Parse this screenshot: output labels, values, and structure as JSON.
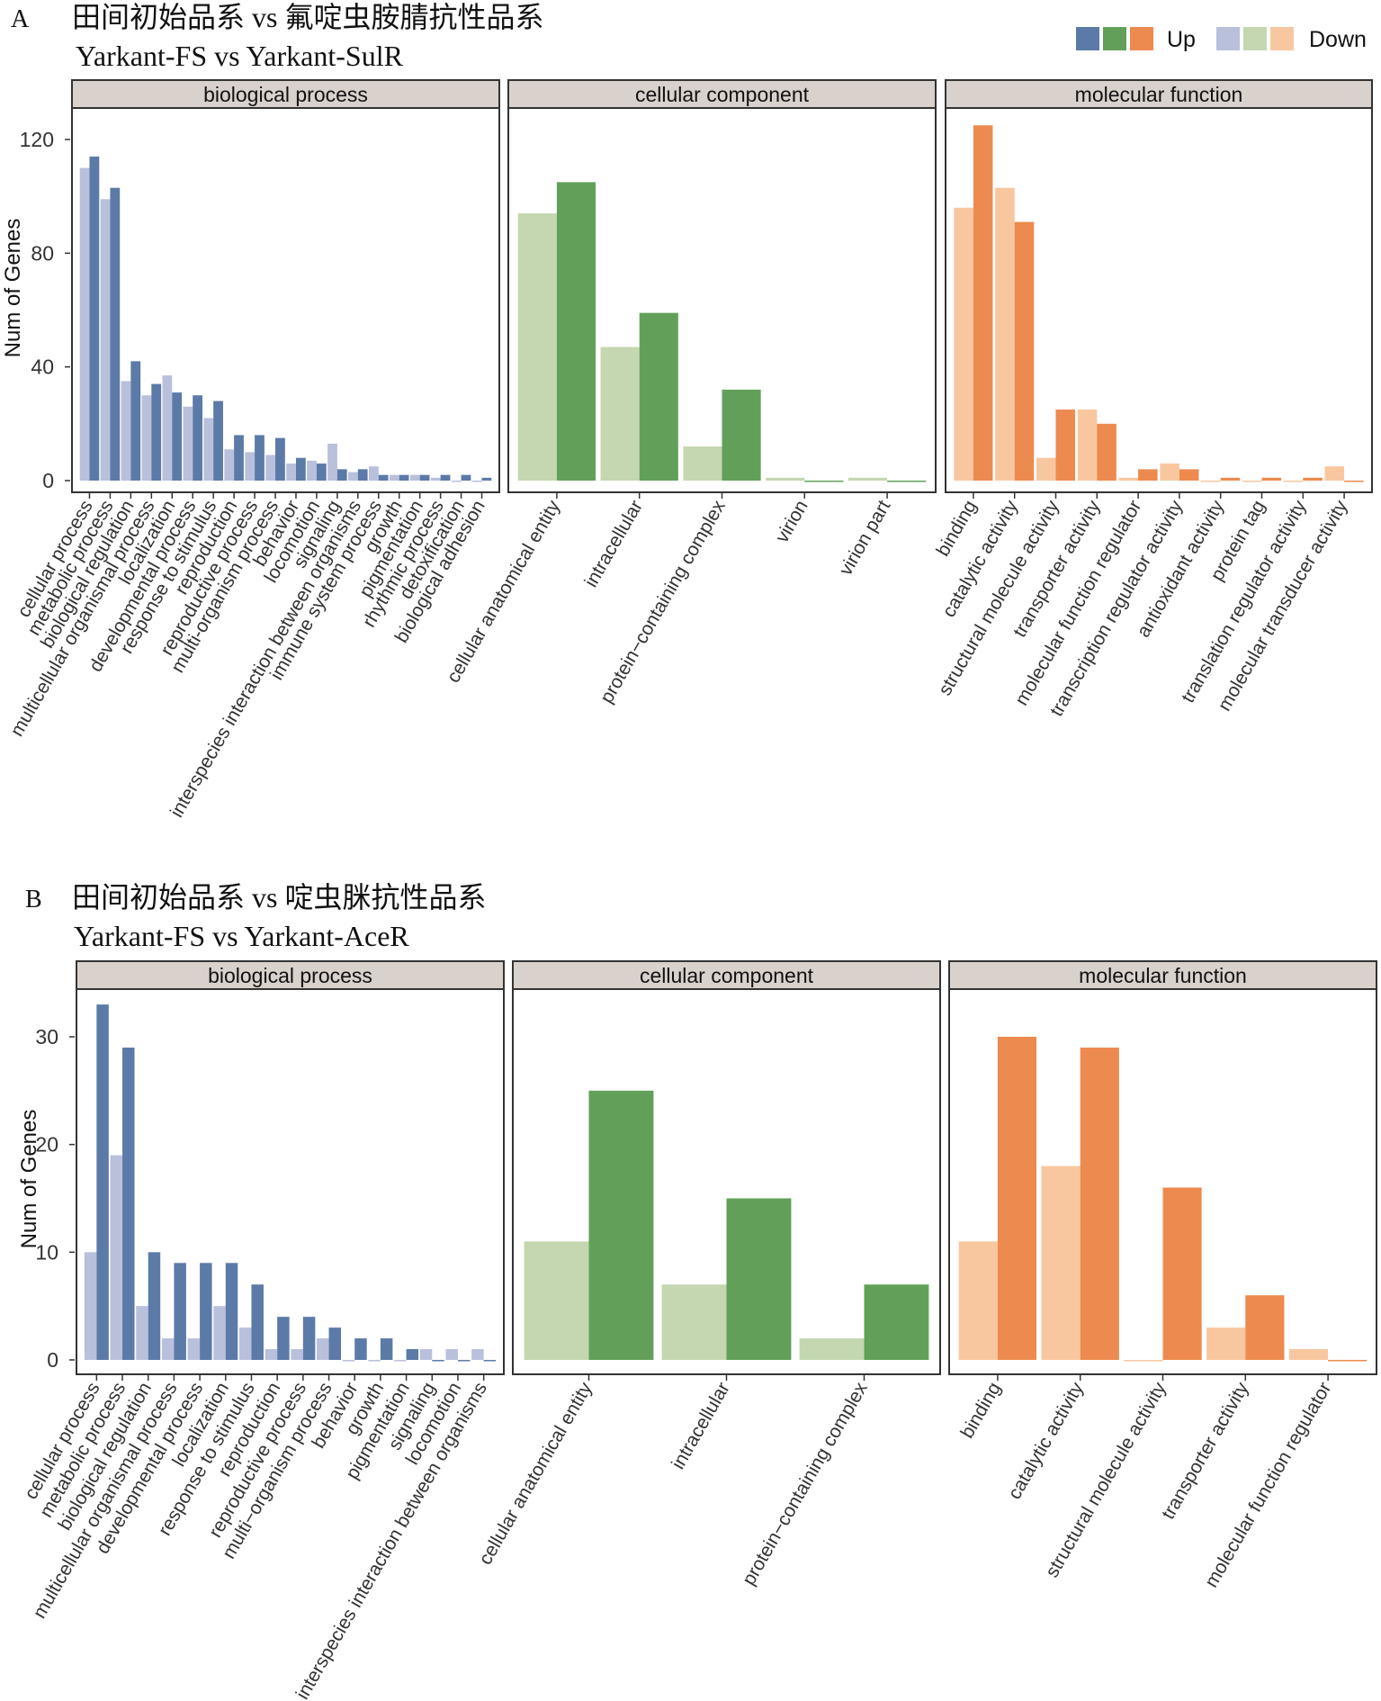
{
  "legend": {
    "up_label": "Up",
    "down_label": "Down",
    "up_colors": [
      "#5c7aa8",
      "#62a05a",
      "#ed8a4f"
    ],
    "down_colors": [
      "#b9c0dc",
      "#c4d7b0",
      "#f8c7a0"
    ]
  },
  "chart_data": [
    {
      "type": "bar",
      "panel_letter": "A",
      "title": "田间初始品系 vs 氟啶虫胺腈抗性品系",
      "subtitle": "Yarkant-FS vs Yarkant-SulR",
      "ylabel": "Num of Genes",
      "ylim": [
        0,
        130
      ],
      "yticks": [
        0,
        40,
        80,
        120
      ],
      "facets": [
        {
          "name": "biological process",
          "color_up": "#5c7aa8",
          "color_down": "#b9c0dc",
          "categories": [
            "cellular process",
            "metabolic process",
            "biological regulation",
            "multicellular organismal process",
            "localization",
            "developmental process",
            "response to stimulus",
            "reproduction",
            "reproductive process",
            "multi-organism process",
            "behavior",
            "locomotion",
            "signaling",
            "interspecies interaction between organisms",
            "immune system process",
            "growth",
            "pigmentation",
            "rhythmic process",
            "detoxification",
            "biological adhesion"
          ],
          "series": [
            {
              "name": "Down",
              "values": [
                110,
                99,
                35,
                30,
                37,
                26,
                22,
                11,
                10,
                9,
                6,
                7,
                13,
                3,
                5,
                2,
                2,
                1,
                0,
                0
              ]
            },
            {
              "name": "Up",
              "values": [
                114,
                103,
                42,
                34,
                31,
                30,
                28,
                16,
                16,
                15,
                8,
                6,
                4,
                4,
                2,
                2,
                2,
                2,
                2,
                1
              ]
            }
          ]
        },
        {
          "name": "cellular component",
          "color_up": "#62a05a",
          "color_down": "#c4d7b0",
          "categories": [
            "cellular anatomical entity",
            "intracellular",
            "protein−containing complex",
            "virion",
            "virion part"
          ],
          "series": [
            {
              "name": "Down",
              "values": [
                94,
                47,
                12,
                1,
                1
              ]
            },
            {
              "name": "Up",
              "values": [
                105,
                59,
                32,
                0,
                0
              ]
            }
          ]
        },
        {
          "name": "molecular function",
          "color_up": "#ed8a4f",
          "color_down": "#f8c7a0",
          "categories": [
            "binding",
            "catalytic activity",
            "structural molecule activity",
            "transporter activity",
            "molecular function regulator",
            "transcription regulator activity",
            "antioxidant activity",
            "protein tag",
            "translation regulator activity",
            "molecular transducer activity"
          ],
          "series": [
            {
              "name": "Down",
              "values": [
                96,
                103,
                8,
                25,
                1,
                6,
                0,
                0,
                0,
                5
              ]
            },
            {
              "name": "Up",
              "values": [
                125,
                91,
                25,
                20,
                4,
                4,
                1,
                1,
                1,
                0
              ]
            }
          ]
        }
      ]
    },
    {
      "type": "bar",
      "panel_letter": "B",
      "title": "田间初始品系 vs 啶虫脒抗性品系",
      "subtitle": "Yarkant-FS vs Yarkant-AceR",
      "ylabel": "Num of Genes",
      "ylim": [
        0,
        35
      ],
      "yticks": [
        0,
        10,
        20,
        30
      ],
      "facets": [
        {
          "name": "biological process",
          "color_up": "#5c7aa8",
          "color_down": "#b9c0dc",
          "categories": [
            "cellular process",
            "metabolic process",
            "biological regulation",
            "multicellular organismal process",
            "developmental process",
            "localization",
            "response to stimulus",
            "reproduction",
            "reproductive process",
            "multi−organism process",
            "behavior",
            "growth",
            "pigmentation",
            "signaling",
            "locomotion",
            "interspecies interaction between organisms"
          ],
          "series": [
            {
              "name": "Down",
              "values": [
                10,
                19,
                5,
                2,
                2,
                5,
                3,
                1,
                1,
                2,
                0,
                0,
                0,
                1,
                1,
                1
              ]
            },
            {
              "name": "Up",
              "values": [
                33,
                29,
                10,
                9,
                9,
                9,
                7,
                4,
                4,
                3,
                2,
                2,
                1,
                0,
                0,
                0
              ]
            }
          ]
        },
        {
          "name": "cellular component",
          "color_up": "#62a05a",
          "color_down": "#c4d7b0",
          "categories": [
            "cellular anatomical entity",
            "intracellular",
            "protein−containing complex"
          ],
          "series": [
            {
              "name": "Down",
              "values": [
                11,
                7,
                2
              ]
            },
            {
              "name": "Up",
              "values": [
                25,
                15,
                7
              ]
            }
          ]
        },
        {
          "name": "molecular function",
          "color_up": "#ed8a4f",
          "color_down": "#f8c7a0",
          "categories": [
            "binding",
            "catalytic activity",
            "structural molecule activity",
            "transporter activity",
            "molecular function regulator"
          ],
          "series": [
            {
              "name": "Down",
              "values": [
                11,
                18,
                0,
                3,
                1
              ]
            },
            {
              "name": "Up",
              "values": [
                30,
                29,
                16,
                6,
                0
              ]
            }
          ]
        }
      ]
    }
  ]
}
